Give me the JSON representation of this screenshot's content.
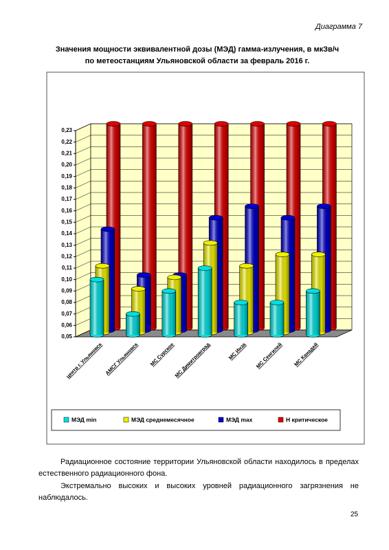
{
  "caption": "Диаграмма 7",
  "chart_data": {
    "type": "bar3d",
    "title": [
      "Значения мощности эквивалентной дозы (МЭД) гамма-излучения, в мкЗв/ч",
      "по метеостанциям Ульяновской области за февраль 2016 г."
    ],
    "categories": [
      "центр г. Ульяновск",
      "АМСГ Ульяновск",
      "МС Сурское",
      "МС Димитровград",
      "МС Инза",
      "МС Сенгилей",
      "МС Канадей"
    ],
    "series": [
      {
        "name": "МЭД min",
        "color": "#00e0e0",
        "values": [
          0.1,
          0.07,
          0.09,
          0.11,
          0.08,
          0.08,
          0.09
        ]
      },
      {
        "name": "МЭД среднемесячное",
        "color": "#f0f000",
        "values": [
          0.11,
          0.09,
          0.1,
          0.13,
          0.11,
          0.12,
          0.12
        ]
      },
      {
        "name": "МЭД max",
        "color": "#0000cc",
        "values": [
          0.14,
          0.1,
          0.1,
          0.15,
          0.16,
          0.15,
          0.16
        ]
      },
      {
        "name": "Н критическое",
        "color": "#e00000",
        "values": [
          0.23,
          0.23,
          0.23,
          0.23,
          0.23,
          0.23,
          0.23
        ]
      }
    ],
    "ylim": [
      0.05,
      0.23
    ],
    "yticks": [
      {
        "value": 0.05,
        "label": "0,05"
      },
      {
        "value": 0.06,
        "label": "0,06"
      },
      {
        "value": 0.07,
        "label": "0,07"
      },
      {
        "value": 0.08,
        "label": "0,08"
      },
      {
        "value": 0.09,
        "label": "0,09"
      },
      {
        "value": 0.1,
        "label": "0,10"
      },
      {
        "value": 0.11,
        "label": "0,11"
      },
      {
        "value": 0.12,
        "label": "0,12"
      },
      {
        "value": 0.13,
        "label": "0,13"
      },
      {
        "value": 0.14,
        "label": "0,14"
      },
      {
        "value": 0.15,
        "label": "0,15"
      },
      {
        "value": 0.16,
        "label": "0,16"
      },
      {
        "value": 0.17,
        "label": "0,17"
      },
      {
        "value": 0.18,
        "label": "0,18"
      },
      {
        "value": 0.19,
        "label": "0,19"
      },
      {
        "value": 0.2,
        "label": "0,20"
      },
      {
        "value": 0.21,
        "label": "0,21"
      },
      {
        "value": 0.22,
        "label": "0,22"
      },
      {
        "value": 0.23,
        "label": "0,23"
      }
    ],
    "grid": true
  },
  "paragraphs": [
    "Радиационное состояние территории Ульяновской области находилось в пределах естественного радиационного фона.",
    "Экстремально высоких и высоких уровней радиационного загрязнения не наблюдалось."
  ],
  "page_number": 25
}
